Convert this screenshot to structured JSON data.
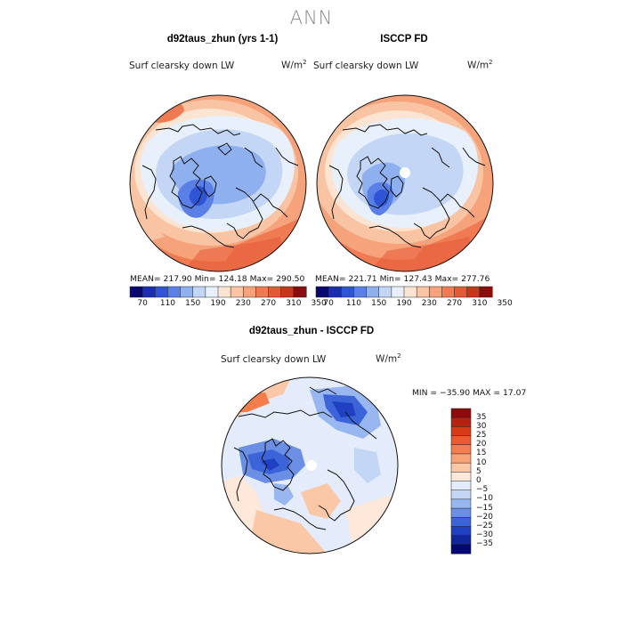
{
  "page_title": "ANN",
  "panels": [
    {
      "title": "d92taus_zhun (yrs 1-1)",
      "variable": "Surf clearsky down LW",
      "units": "W/m",
      "units_exp": "2",
      "stats": "MEAN= 217.90   Min= 124.18   Max= 290.50"
    },
    {
      "title": "ISCCP FD",
      "variable": "Surf clearsky down LW",
      "units": "W/m",
      "units_exp": "2",
      "stats": "MEAN= 221.71   Min= 127.43   Max= 277.76"
    },
    {
      "title": "d92taus_zhun - ISCCP FD",
      "variable": "Surf clearsky down LW",
      "units": "W/m",
      "units_exp": "2",
      "stats": "MIN = −35.90 MAX =  17.07"
    }
  ],
  "abs_colorbar": {
    "tick_labels": [
      "70",
      "110",
      "150",
      "190",
      "230",
      "270",
      "310",
      "350"
    ],
    "colors": [
      "#08086e",
      "#1a2fb0",
      "#2f55d6",
      "#5a80e8",
      "#8fb0ef",
      "#c3d6f6",
      "#e8f0fb",
      "#fce4d2",
      "#f9c4a3",
      "#f6a27a",
      "#f07a52",
      "#e55a36",
      "#c8361d",
      "#8a0c0c"
    ]
  },
  "diff_colorbar": {
    "tick_labels": [
      "35",
      "30",
      "25",
      "20",
      "15",
      "10",
      "5",
      "0",
      "−5",
      "−10",
      "−15",
      "−20",
      "−25",
      "−30",
      "−35"
    ],
    "colors": [
      "#8a0c0c",
      "#b5220f",
      "#d63a17",
      "#ec5a2c",
      "#f47d4e",
      "#f8a27a",
      "#fbc8a7",
      "#fde8da",
      "#e4ecfb",
      "#c4d6f6",
      "#98b6ef",
      "#6a8fe4",
      "#3c64d8",
      "#1f40c0",
      "#10269a",
      "#050870"
    ]
  }
}
